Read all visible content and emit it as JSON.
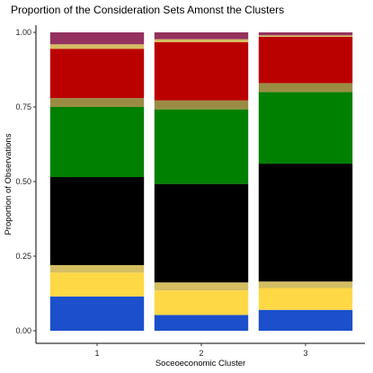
{
  "chart_data": {
    "type": "bar",
    "stacked": true,
    "title": "Proportion of the Consideration Sets Amonst the Clusters",
    "xlabel": "Soceoeconomic Cluster",
    "ylabel": "Proportion of Observations",
    "ylim": [
      0,
      1
    ],
    "yticks": [
      "0.00",
      "0.25",
      "0.50",
      "0.75",
      "1.00"
    ],
    "categories": [
      "1",
      "2",
      "3"
    ],
    "grid": false,
    "legend": "none",
    "series": [
      {
        "color": "#1c4fcc",
        "values": [
          0.115,
          0.053,
          0.07
        ]
      },
      {
        "color": "#ffd845",
        "values": [
          0.08,
          0.082,
          0.073
        ]
      },
      {
        "color": "#d4be62",
        "values": [
          0.025,
          0.027,
          0.022
        ]
      },
      {
        "color": "#000000",
        "values": [
          0.295,
          0.33,
          0.395
        ]
      },
      {
        "color": "#008000",
        "values": [
          0.235,
          0.25,
          0.24
        ]
      },
      {
        "color": "#9a8c44",
        "values": [
          0.03,
          0.03,
          0.03
        ]
      },
      {
        "color": "#bb0000",
        "values": [
          0.165,
          0.195,
          0.155
        ]
      },
      {
        "color": "#d4be62",
        "values": [
          0.015,
          0.01,
          0.005
        ]
      },
      {
        "color": "#94315e",
        "values": [
          0.04,
          0.023,
          0.01
        ]
      }
    ]
  }
}
